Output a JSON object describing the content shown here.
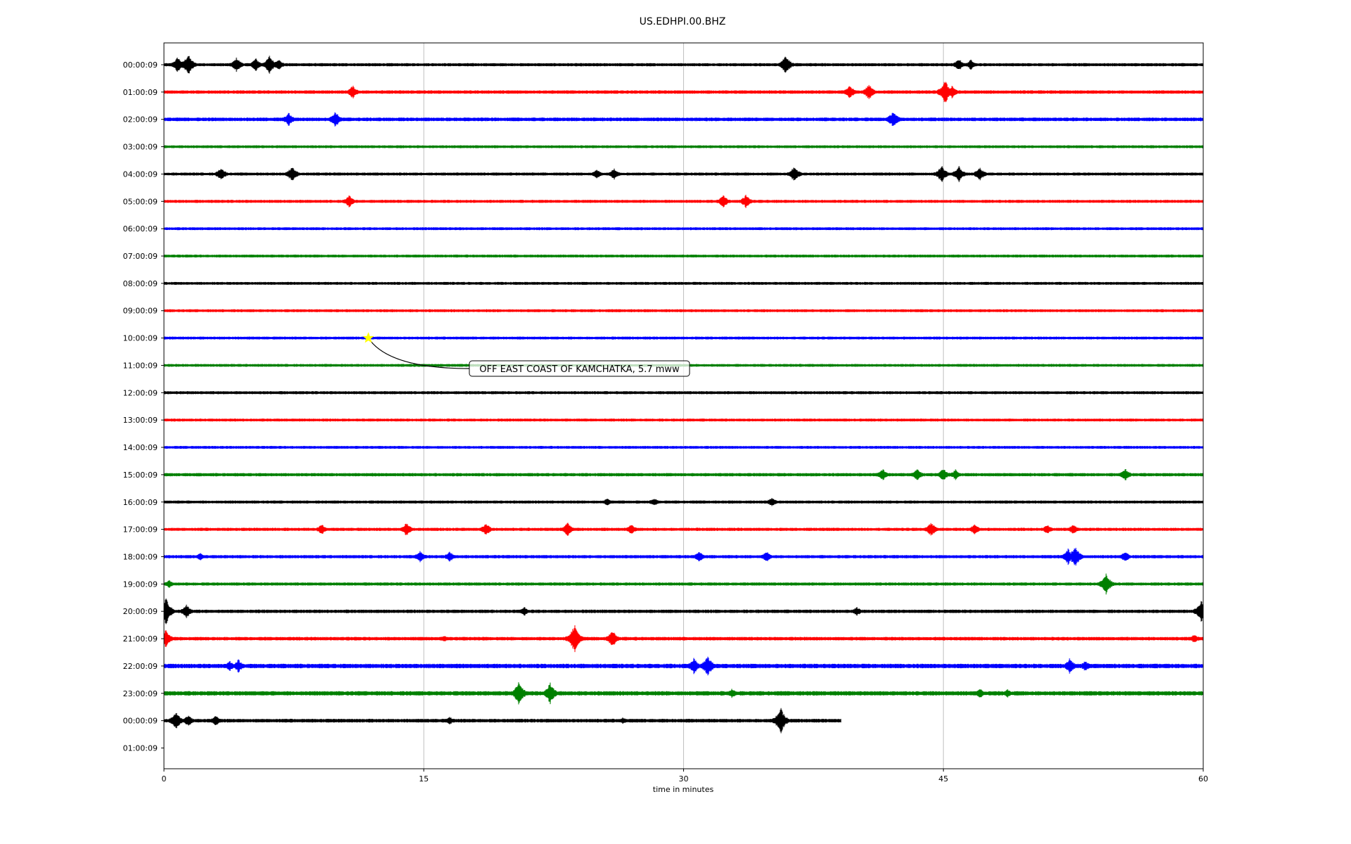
{
  "chart_data": {
    "type": "line",
    "title": "US.EDHPI.00.BHZ",
    "xlabel": "time in minutes",
    "xlim": [
      0,
      60
    ],
    "x_ticks": [
      "0",
      "15",
      "30",
      "45",
      "60"
    ],
    "x_tick_values": [
      0,
      15,
      30,
      45,
      60
    ],
    "grid": "vertical",
    "y_tick_labels": [
      "00:00:09",
      "01:00:09",
      "02:00:09",
      "03:00:09",
      "04:00:09",
      "05:00:09",
      "06:00:09",
      "07:00:09",
      "08:00:09",
      "09:00:09",
      "10:00:09",
      "11:00:09",
      "12:00:09",
      "13:00:09",
      "14:00:09",
      "15:00:09",
      "16:00:09",
      "17:00:09",
      "18:00:09",
      "19:00:09",
      "20:00:09",
      "21:00:09",
      "22:00:09",
      "23:00:09",
      "00:00:09",
      "01:00:09"
    ],
    "trace_colors": [
      "#000000",
      "#ff0000",
      "#0000ff",
      "#008000"
    ],
    "rows": [
      {
        "label": "00:00:09",
        "end_minute": 60,
        "noise": 2.2,
        "events": [
          {
            "t": 0.8,
            "amp": 12
          },
          {
            "t": 1.4,
            "amp": 16
          },
          {
            "t": 4.2,
            "amp": 11
          },
          {
            "t": 5.3,
            "amp": 10
          },
          {
            "t": 6.1,
            "amp": 14
          },
          {
            "t": 6.6,
            "amp": 9
          },
          {
            "t": 35.9,
            "amp": 15
          },
          {
            "t": 45.9,
            "amp": 9
          },
          {
            "t": 46.6,
            "amp": 8
          }
        ]
      },
      {
        "label": "01:00:09",
        "end_minute": 60,
        "noise": 2.4,
        "events": [
          {
            "t": 10.9,
            "amp": 10
          },
          {
            "t": 39.6,
            "amp": 10
          },
          {
            "t": 40.7,
            "amp": 12
          },
          {
            "t": 45.1,
            "amp": 18
          },
          {
            "t": 45.5,
            "amp": 10
          }
        ]
      },
      {
        "label": "02:00:09",
        "end_minute": 60,
        "noise": 2.6,
        "events": [
          {
            "t": 7.2,
            "amp": 10
          },
          {
            "t": 9.9,
            "amp": 12
          },
          {
            "t": 42.1,
            "amp": 13
          }
        ]
      },
      {
        "label": "03:00:09",
        "end_minute": 60,
        "noise": 2.0,
        "events": []
      },
      {
        "label": "04:00:09",
        "end_minute": 60,
        "noise": 2.1,
        "events": [
          {
            "t": 3.3,
            "amp": 10
          },
          {
            "t": 7.4,
            "amp": 12
          },
          {
            "t": 25.0,
            "amp": 7
          },
          {
            "t": 26.0,
            "amp": 9
          },
          {
            "t": 36.4,
            "amp": 12
          },
          {
            "t": 44.9,
            "amp": 13
          },
          {
            "t": 45.9,
            "amp": 12
          },
          {
            "t": 47.1,
            "amp": 10
          }
        ]
      },
      {
        "label": "05:00:09",
        "end_minute": 60,
        "noise": 2.1,
        "events": [
          {
            "t": 10.7,
            "amp": 9
          },
          {
            "t": 32.3,
            "amp": 10
          },
          {
            "t": 33.6,
            "amp": 10
          }
        ]
      },
      {
        "label": "06:00:09",
        "end_minute": 60,
        "noise": 2.0,
        "events": []
      },
      {
        "label": "07:00:09",
        "end_minute": 60,
        "noise": 2.0,
        "events": []
      },
      {
        "label": "08:00:09",
        "end_minute": 60,
        "noise": 2.0,
        "events": []
      },
      {
        "label": "09:00:09",
        "end_minute": 60,
        "noise": 2.0,
        "events": []
      },
      {
        "label": "10:00:09",
        "end_minute": 60,
        "noise": 2.0,
        "events": []
      },
      {
        "label": "11:00:09",
        "end_minute": 60,
        "noise": 2.0,
        "events": []
      },
      {
        "label": "12:00:09",
        "end_minute": 60,
        "noise": 2.1,
        "events": []
      },
      {
        "label": "13:00:09",
        "end_minute": 60,
        "noise": 2.0,
        "events": []
      },
      {
        "label": "14:00:09",
        "end_minute": 60,
        "noise": 2.0,
        "events": []
      },
      {
        "label": "15:00:09",
        "end_minute": 60,
        "noise": 2.3,
        "events": [
          {
            "t": 41.5,
            "amp": 9
          },
          {
            "t": 43.5,
            "amp": 9
          },
          {
            "t": 45.0,
            "amp": 10
          },
          {
            "t": 45.7,
            "amp": 8
          },
          {
            "t": 55.5,
            "amp": 9
          }
        ]
      },
      {
        "label": "16:00:09",
        "end_minute": 60,
        "noise": 2.1,
        "events": [
          {
            "t": 25.6,
            "amp": 6
          },
          {
            "t": 28.3,
            "amp": 6
          },
          {
            "t": 35.1,
            "amp": 7
          }
        ]
      },
      {
        "label": "17:00:09",
        "end_minute": 60,
        "noise": 2.2,
        "events": [
          {
            "t": 9.1,
            "amp": 8
          },
          {
            "t": 14.0,
            "amp": 10
          },
          {
            "t": 18.6,
            "amp": 10
          },
          {
            "t": 23.3,
            "amp": 11
          },
          {
            "t": 27.0,
            "amp": 8
          },
          {
            "t": 44.3,
            "amp": 11
          },
          {
            "t": 46.8,
            "amp": 8
          },
          {
            "t": 51.0,
            "amp": 7
          },
          {
            "t": 52.5,
            "amp": 8
          }
        ]
      },
      {
        "label": "18:00:09",
        "end_minute": 60,
        "noise": 2.3,
        "events": [
          {
            "t": 2.1,
            "amp": 6
          },
          {
            "t": 14.8,
            "amp": 9
          },
          {
            "t": 16.5,
            "amp": 8
          },
          {
            "t": 30.9,
            "amp": 8
          },
          {
            "t": 34.8,
            "amp": 8
          },
          {
            "t": 52.2,
            "amp": 12
          },
          {
            "t": 52.6,
            "amp": 16
          },
          {
            "t": 55.5,
            "amp": 8
          }
        ]
      },
      {
        "label": "19:00:09",
        "end_minute": 60,
        "noise": 2.2,
        "events": [
          {
            "t": 0.3,
            "amp": 6
          },
          {
            "t": 54.4,
            "amp": 16
          }
        ]
      },
      {
        "label": "20:00:09",
        "end_minute": 60,
        "noise": 2.4,
        "events": [
          {
            "t": 0.1,
            "amp": 22
          },
          {
            "t": 1.3,
            "amp": 10
          },
          {
            "t": 20.8,
            "amp": 7
          },
          {
            "t": 40.0,
            "amp": 7
          },
          {
            "t": 59.9,
            "amp": 18
          }
        ]
      },
      {
        "label": "21:00:09",
        "end_minute": 60,
        "noise": 2.5,
        "events": [
          {
            "t": 0.1,
            "amp": 14
          },
          {
            "t": 16.2,
            "amp": 5
          },
          {
            "t": 23.7,
            "amp": 22
          },
          {
            "t": 25.9,
            "amp": 13
          },
          {
            "t": 59.5,
            "amp": 7
          }
        ]
      },
      {
        "label": "22:00:09",
        "end_minute": 60,
        "noise": 3.2,
        "events": [
          {
            "t": 3.8,
            "amp": 8
          },
          {
            "t": 4.3,
            "amp": 10
          },
          {
            "t": 30.6,
            "amp": 12
          },
          {
            "t": 31.4,
            "amp": 16
          },
          {
            "t": 52.3,
            "amp": 12
          },
          {
            "t": 53.2,
            "amp": 8
          }
        ]
      },
      {
        "label": "23:00:09",
        "end_minute": 60,
        "noise": 3.1,
        "events": [
          {
            "t": 20.5,
            "amp": 18
          },
          {
            "t": 22.3,
            "amp": 16
          },
          {
            "t": 32.8,
            "amp": 7
          },
          {
            "t": 47.1,
            "amp": 8
          },
          {
            "t": 48.7,
            "amp": 7
          }
        ]
      },
      {
        "label": "00:00:09",
        "end_minute": 39.1,
        "noise": 2.6,
        "events": [
          {
            "t": 0.7,
            "amp": 14
          },
          {
            "t": 1.4,
            "amp": 9
          },
          {
            "t": 3.0,
            "amp": 8
          },
          {
            "t": 16.5,
            "amp": 6
          },
          {
            "t": 26.5,
            "amp": 5
          },
          {
            "t": 35.6,
            "amp": 20
          }
        ]
      }
    ],
    "event_marker": {
      "row": "10:00:09",
      "minute": 11.8,
      "color": "#ffff00"
    },
    "annotations": [
      {
        "text": "OFF EAST COAST OF KAMCHATKA, 5.7 mww"
      }
    ]
  }
}
